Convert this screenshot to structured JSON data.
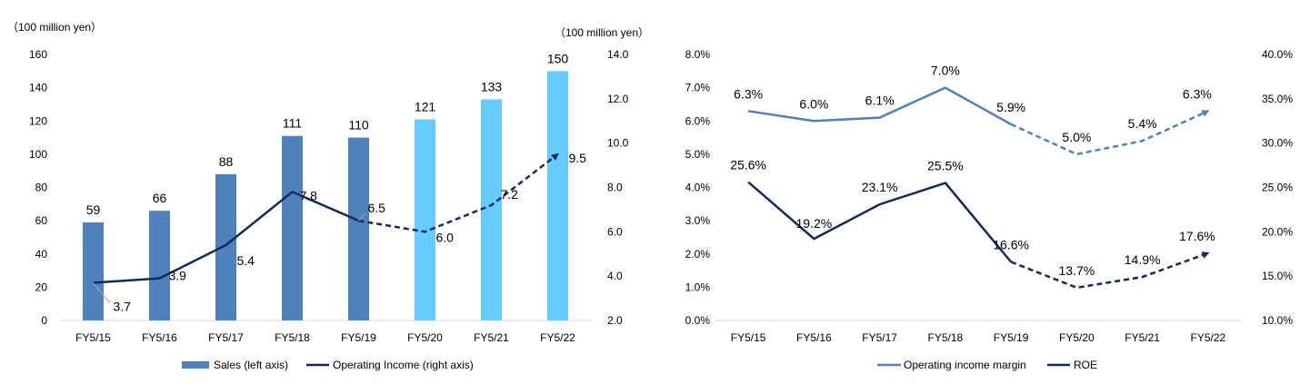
{
  "chart_data": [
    {
      "type": "bar",
      "categories": [
        "FY5/15",
        "FY5/16",
        "FY5/17",
        "FY5/18",
        "FY5/19",
        "FY5/20",
        "FY5/21",
        "FY5/22"
      ],
      "left_unit": "（100 million yen）",
      "right_unit": "（100 million yen）",
      "ylim_left": [
        0,
        160
      ],
      "yticks_left": [
        "0",
        "20",
        "40",
        "60",
        "80",
        "100",
        "120",
        "140",
        "160"
      ],
      "ylim_right": [
        2.0,
        14.0
      ],
      "yticks_right": [
        "2.0",
        "4.0",
        "6.0",
        "8.0",
        "10.0",
        "12.0",
        "14.0"
      ],
      "series": [
        {
          "name": "Sales (left axis)",
          "kind": "bar",
          "axis": "left",
          "values": [
            59,
            66,
            88,
            111,
            110,
            121,
            133,
            150
          ],
          "labels": [
            "59",
            "66",
            "88",
            "111",
            "110",
            "121",
            "133",
            "150"
          ],
          "actual_color": "#4f81bd",
          "forecast_color": "#66ccff",
          "forecast_from_index": 5
        },
        {
          "name": "Operating Income (right axis)",
          "kind": "line",
          "axis": "right",
          "values": [
            3.7,
            3.9,
            5.4,
            7.8,
            6.5,
            6.0,
            7.2,
            9.5
          ],
          "labels": [
            "3.7",
            "3.9",
            "5.4",
            "7.8",
            "6.5",
            "6.0",
            "7.2",
            "9.5"
          ],
          "color": "#0f2a5e",
          "dashed_from_index": 4
        }
      ],
      "legend_position": "bottom",
      "grid": false
    },
    {
      "type": "line",
      "categories": [
        "FY5/15",
        "FY5/16",
        "FY5/17",
        "FY5/18",
        "FY5/19",
        "FY5/20",
        "FY5/21",
        "FY5/22"
      ],
      "ylim_left": [
        0,
        8
      ],
      "yticks_left": [
        "0.0%",
        "1.0%",
        "2.0%",
        "3.0%",
        "4.0%",
        "5.0%",
        "6.0%",
        "7.0%",
        "8.0%"
      ],
      "ylim_right": [
        10,
        40
      ],
      "yticks_right": [
        "10.0%",
        "15.0%",
        "20.0%",
        "25.0%",
        "30.0%",
        "35.0%",
        "40.0%"
      ],
      "series": [
        {
          "name": "Operating income margin",
          "axis": "left",
          "values": [
            6.3,
            6.0,
            6.1,
            7.0,
            5.9,
            5.0,
            5.4,
            6.3
          ],
          "labels": [
            "6.3%",
            "6.0%",
            "6.1%",
            "7.0%",
            "5.9%",
            "5.0%",
            "5.4%",
            "6.3%"
          ],
          "color": "#4f81bd",
          "dashed_from_index": 4
        },
        {
          "name": "ROE",
          "axis": "right",
          "values": [
            25.6,
            19.2,
            23.1,
            25.5,
            16.6,
            13.7,
            14.9,
            17.6
          ],
          "labels": [
            "25.6%",
            "19.2%",
            "23.1%",
            "25.5%",
            "16.6%",
            "13.7%",
            "14.9%",
            "17.6%"
          ],
          "color": "#0f2a5e",
          "dashed_from_index": 4
        }
      ],
      "legend_position": "bottom",
      "grid": false
    }
  ]
}
